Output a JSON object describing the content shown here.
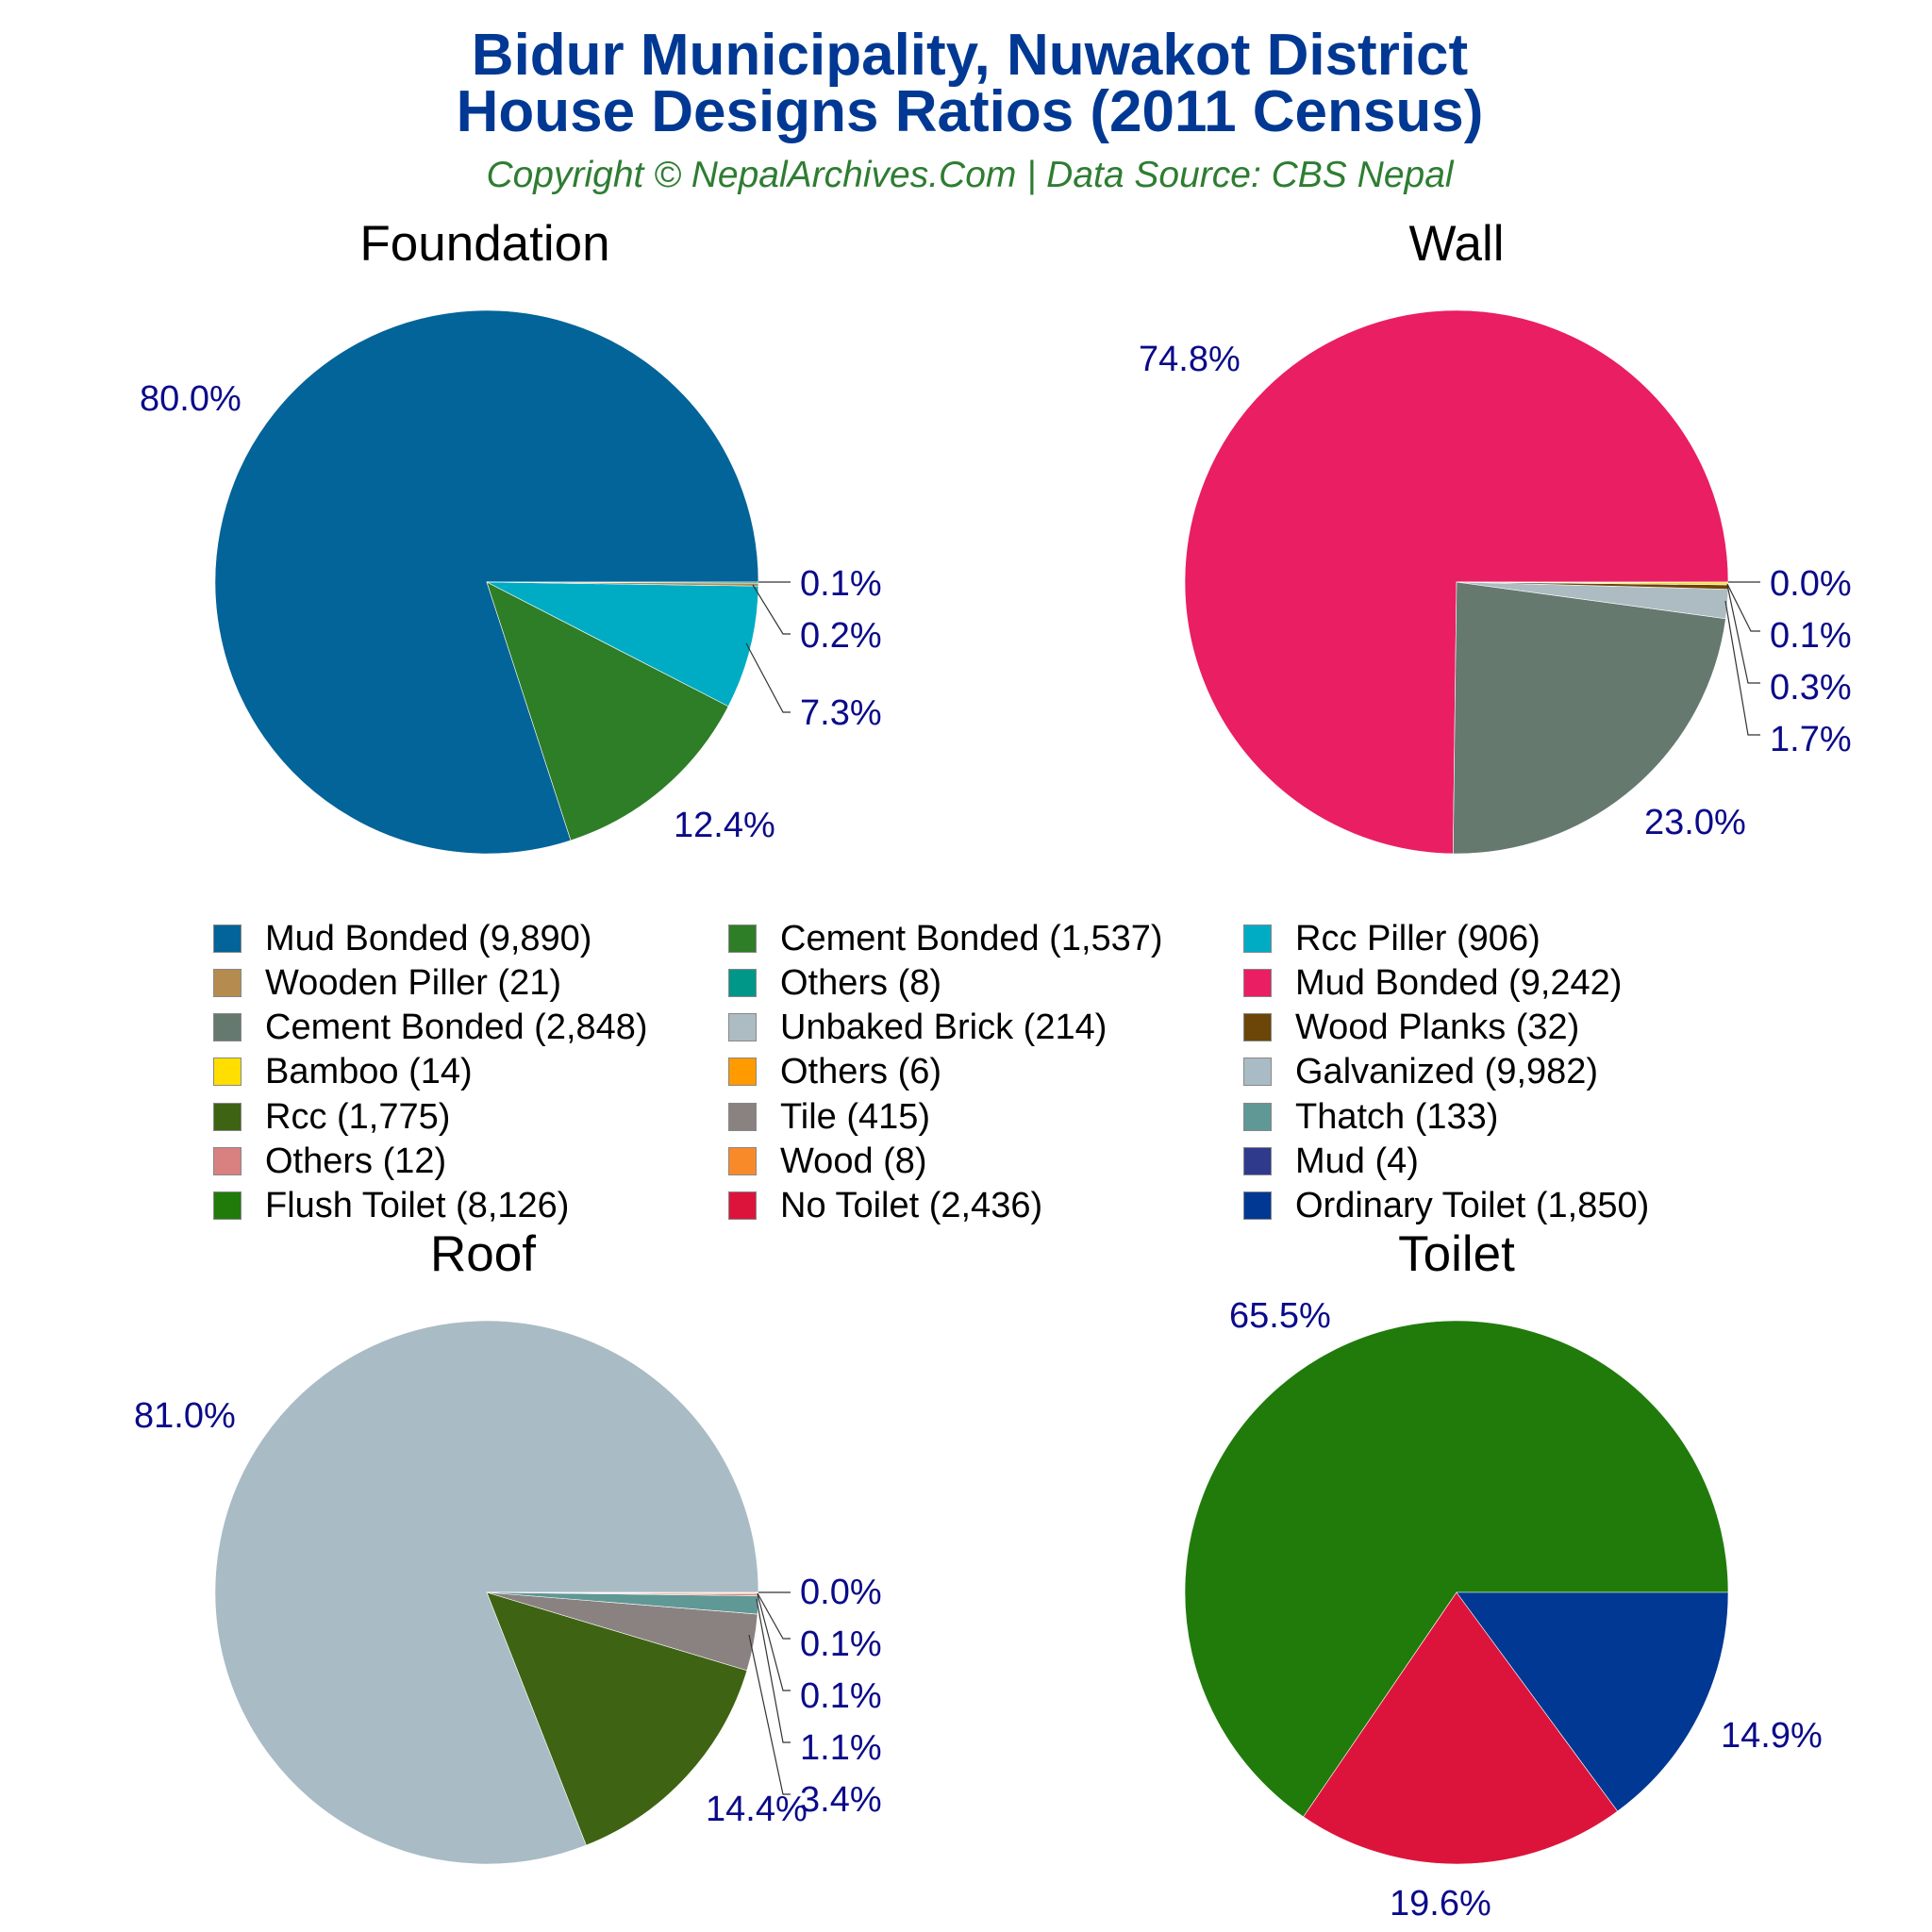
{
  "header": {
    "title_line1": "Bidur Municipality, Nuwakot District",
    "title_line2": "House Designs Ratios (2011 Census)",
    "copyright": "Copyright © NepalArchives.Com | Data Source: CBS Nepal"
  },
  "legend": [
    {
      "label": "Mud Bonded (9,890)",
      "color": "#026498"
    },
    {
      "label": "Cement Bonded (1,537)",
      "color": "#2e7d27"
    },
    {
      "label": "Rcc Piller (906)",
      "color": "#00acc4"
    },
    {
      "label": "Wooden Piller (21)",
      "color": "#b58c4f"
    },
    {
      "label": "Others (8)",
      "color": "#009688"
    },
    {
      "label": "Mud Bonded (9,242)",
      "color": "#e91e63"
    },
    {
      "label": "Cement Bonded (2,848)",
      "color": "#65796f"
    },
    {
      "label": "Unbaked Brick (214)",
      "color": "#adbcc2"
    },
    {
      "label": "Wood Planks (32)",
      "color": "#6b4608"
    },
    {
      "label": "Bamboo (14)",
      "color": "#ffde00"
    },
    {
      "label": "Others (6)",
      "color": "#ff9a00"
    },
    {
      "label": "Galvanized (9,982)",
      "color": "#a9bbc5"
    },
    {
      "label": "Rcc (1,775)",
      "color": "#3e6413"
    },
    {
      "label": "Tile (415)",
      "color": "#8a8280"
    },
    {
      "label": "Thatch (133)",
      "color": "#5f9895"
    },
    {
      "label": "Others (12)",
      "color": "#d98080"
    },
    {
      "label": "Wood (8)",
      "color": "#f98a2a"
    },
    {
      "label": "Mud (4)",
      "color": "#2f3a8c"
    },
    {
      "label": "Flush Toilet (8,126)",
      "color": "#207b0b"
    },
    {
      "label": "No Toilet (2,436)",
      "color": "#dc143c"
    },
    {
      "label": "Ordinary Toilet (1,850)",
      "color": "#003893"
    }
  ],
  "chart_data": [
    {
      "type": "pie",
      "title": "Foundation",
      "categories": [
        "Mud Bonded",
        "Cement Bonded",
        "Rcc Piller",
        "Wooden Piller",
        "Others"
      ],
      "values": [
        9890,
        1537,
        906,
        21,
        8
      ],
      "percent_labels": [
        "80.0%",
        "12.4%",
        "7.3%",
        "0.2%",
        "0.1%"
      ],
      "colors": [
        "#026498",
        "#2e7d27",
        "#00acc4",
        "#b58c4f",
        "#009688"
      ]
    },
    {
      "type": "pie",
      "title": "Wall",
      "categories": [
        "Mud Bonded",
        "Cement Bonded",
        "Unbaked Brick",
        "Wood Planks",
        "Bamboo",
        "Others"
      ],
      "values": [
        9242,
        2848,
        214,
        32,
        14,
        6
      ],
      "percent_labels": [
        "74.8%",
        "23.0%",
        "1.7%",
        "0.3%",
        "0.1%",
        "0.0%"
      ],
      "colors": [
        "#e91e63",
        "#65796f",
        "#adbcc2",
        "#6b4608",
        "#ffde00",
        "#ff9a00"
      ]
    },
    {
      "type": "pie",
      "title": "Roof",
      "categories": [
        "Galvanized",
        "Rcc",
        "Tile",
        "Thatch",
        "Others",
        "Wood",
        "Mud"
      ],
      "values": [
        9982,
        1775,
        415,
        133,
        12,
        8,
        4
      ],
      "percent_labels": [
        "81.0%",
        "14.4%",
        "3.4%",
        "1.1%",
        "0.1%",
        "0.1%",
        "0.0%"
      ],
      "colors": [
        "#a9bbc5",
        "#3e6413",
        "#8a8280",
        "#5f9895",
        "#d98080",
        "#f98a2a",
        "#2f3a8c"
      ]
    },
    {
      "type": "pie",
      "title": "Toilet",
      "categories": [
        "Flush Toilet",
        "No Toilet",
        "Ordinary Toilet"
      ],
      "values": [
        8126,
        2436,
        1850
      ],
      "percent_labels": [
        "65.5%",
        "19.6%",
        "14.9%"
      ],
      "colors": [
        "#207b0b",
        "#dc143c",
        "#003893"
      ]
    }
  ]
}
